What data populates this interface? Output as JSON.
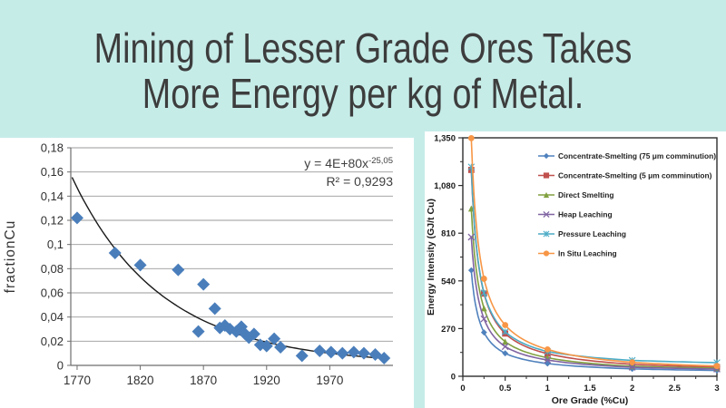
{
  "slide": {
    "title_line1": "Mining of Lesser Grade Ores Takes",
    "title_line2": "More Energy per kg of Metal.",
    "background_color": "#c6ece8",
    "title_color": "#3d3d3d",
    "panel_color": "#ffffff"
  },
  "chart_data": [
    {
      "id": "fraction-cu-vs-year",
      "type": "scatter",
      "title": "",
      "xlabel": "",
      "ylabel": "fractionCu",
      "xlim": [
        1765,
        2020
      ],
      "ylim": [
        0,
        0.18
      ],
      "grid": "horizontal",
      "legend": "none",
      "x_ticks": [
        {
          "value": 1770,
          "label": "1770"
        },
        {
          "value": 1820,
          "label": "1820"
        },
        {
          "value": 1870,
          "label": "1870"
        },
        {
          "value": 1920,
          "label": "1920"
        },
        {
          "value": 1970,
          "label": "1970"
        }
      ],
      "y_ticks": [
        {
          "value": 0,
          "label": "0"
        },
        {
          "value": 0.02,
          "label": "0,02"
        },
        {
          "value": 0.04,
          "label": "0,04"
        },
        {
          "value": 0.06,
          "label": "0,06"
        },
        {
          "value": 0.08,
          "label": "0,08"
        },
        {
          "value": 0.1,
          "label": "0,1"
        },
        {
          "value": 0.12,
          "label": "0,12"
        },
        {
          "value": 0.14,
          "label": "0,14"
        },
        {
          "value": 0.16,
          "label": "0,16"
        },
        {
          "value": 0.18,
          "label": "0,18"
        }
      ],
      "marker": "diamond",
      "marker_color": "#4a7ebb",
      "trendline": {
        "style": "solid",
        "color": "#1a1a1a",
        "equation_base": "y = 4E+80x",
        "equation_exponent": "-25,05",
        "r_squared": "R² = 0,9293",
        "fit": {
          "y_at_1770": 0.147,
          "power": -25.05
        }
      },
      "points": [
        [
          1770,
          0.122
        ],
        [
          1800,
          0.093
        ],
        [
          1820,
          0.083
        ],
        [
          1850,
          0.079
        ],
        [
          1866,
          0.028
        ],
        [
          1870,
          0.067
        ],
        [
          1879,
          0.047
        ],
        [
          1883,
          0.031
        ],
        [
          1887,
          0.033
        ],
        [
          1891,
          0.03
        ],
        [
          1896,
          0.028
        ],
        [
          1900,
          0.032
        ],
        [
          1903,
          0.026
        ],
        [
          1906,
          0.023
        ],
        [
          1910,
          0.026
        ],
        [
          1915,
          0.017
        ],
        [
          1920,
          0.016
        ],
        [
          1926,
          0.022
        ],
        [
          1931,
          0.015
        ],
        [
          1948,
          0.008
        ],
        [
          1962,
          0.012
        ],
        [
          1971,
          0.011
        ],
        [
          1980,
          0.01
        ],
        [
          1989,
          0.011
        ],
        [
          1997,
          0.01
        ],
        [
          2006,
          0.009
        ],
        [
          2013,
          0.006
        ]
      ]
    },
    {
      "id": "energy-intensity-vs-ore-grade",
      "type": "line",
      "title": "",
      "xlabel": "Ore Grade (%Cu)",
      "ylabel": "Energy Intensity (GJ/t Cu)",
      "xlim": [
        0,
        3
      ],
      "ylim": [
        0,
        1350
      ],
      "grid": "off",
      "plot_border": "box",
      "legend_position": "top-right-inside",
      "x_minor_step": 0.25,
      "y_minor_step": 135,
      "x_ticks": [
        {
          "value": 0,
          "label": "0"
        },
        {
          "value": 0.5,
          "label": "0.5"
        },
        {
          "value": 1,
          "label": "1"
        },
        {
          "value": 1.5,
          "label": "1.5"
        },
        {
          "value": 2,
          "label": "2"
        },
        {
          "value": 2.5,
          "label": "2.5"
        },
        {
          "value": 3,
          "label": "3"
        }
      ],
      "y_ticks": [
        {
          "value": 0,
          "label": "0"
        },
        {
          "value": 270,
          "label": "270"
        },
        {
          "value": 540,
          "label": "540"
        },
        {
          "value": 810,
          "label": "810"
        },
        {
          "value": 1080,
          "label": "1,080"
        },
        {
          "value": 1350,
          "label": "1,350"
        }
      ],
      "x": [
        0.1,
        0.25,
        0.5,
        1,
        2,
        3
      ],
      "series": [
        {
          "name": "Concentrate-Smelting (75 μm comminution)",
          "color": "#4f81bd",
          "marker": "diamond",
          "values": [
            600,
            248,
            130,
            72,
            42,
            33
          ]
        },
        {
          "name": "Concentrate-Smelting (5 μm comminution)",
          "color": "#c0504d",
          "marker": "square",
          "values": [
            1168,
            468,
            242,
            128,
            68,
            52
          ]
        },
        {
          "name": "Direct Smelting",
          "color": "#82a140",
          "marker": "triangle",
          "values": [
            950,
            385,
            196,
            105,
            57,
            46
          ]
        },
        {
          "name": "Heap Leaching",
          "color": "#8064a2",
          "marker": "x",
          "values": [
            788,
            325,
            168,
            92,
            51,
            41
          ]
        },
        {
          "name": "Pressure Leaching",
          "color": "#4bacc6",
          "marker": "asterisk",
          "values": [
            1185,
            472,
            252,
            140,
            90,
            77
          ]
        },
        {
          "name": "In Situ Leaching",
          "color": "#f79646",
          "marker": "circle",
          "values": [
            1348,
            552,
            290,
            152,
            79,
            58
          ]
        }
      ]
    }
  ]
}
